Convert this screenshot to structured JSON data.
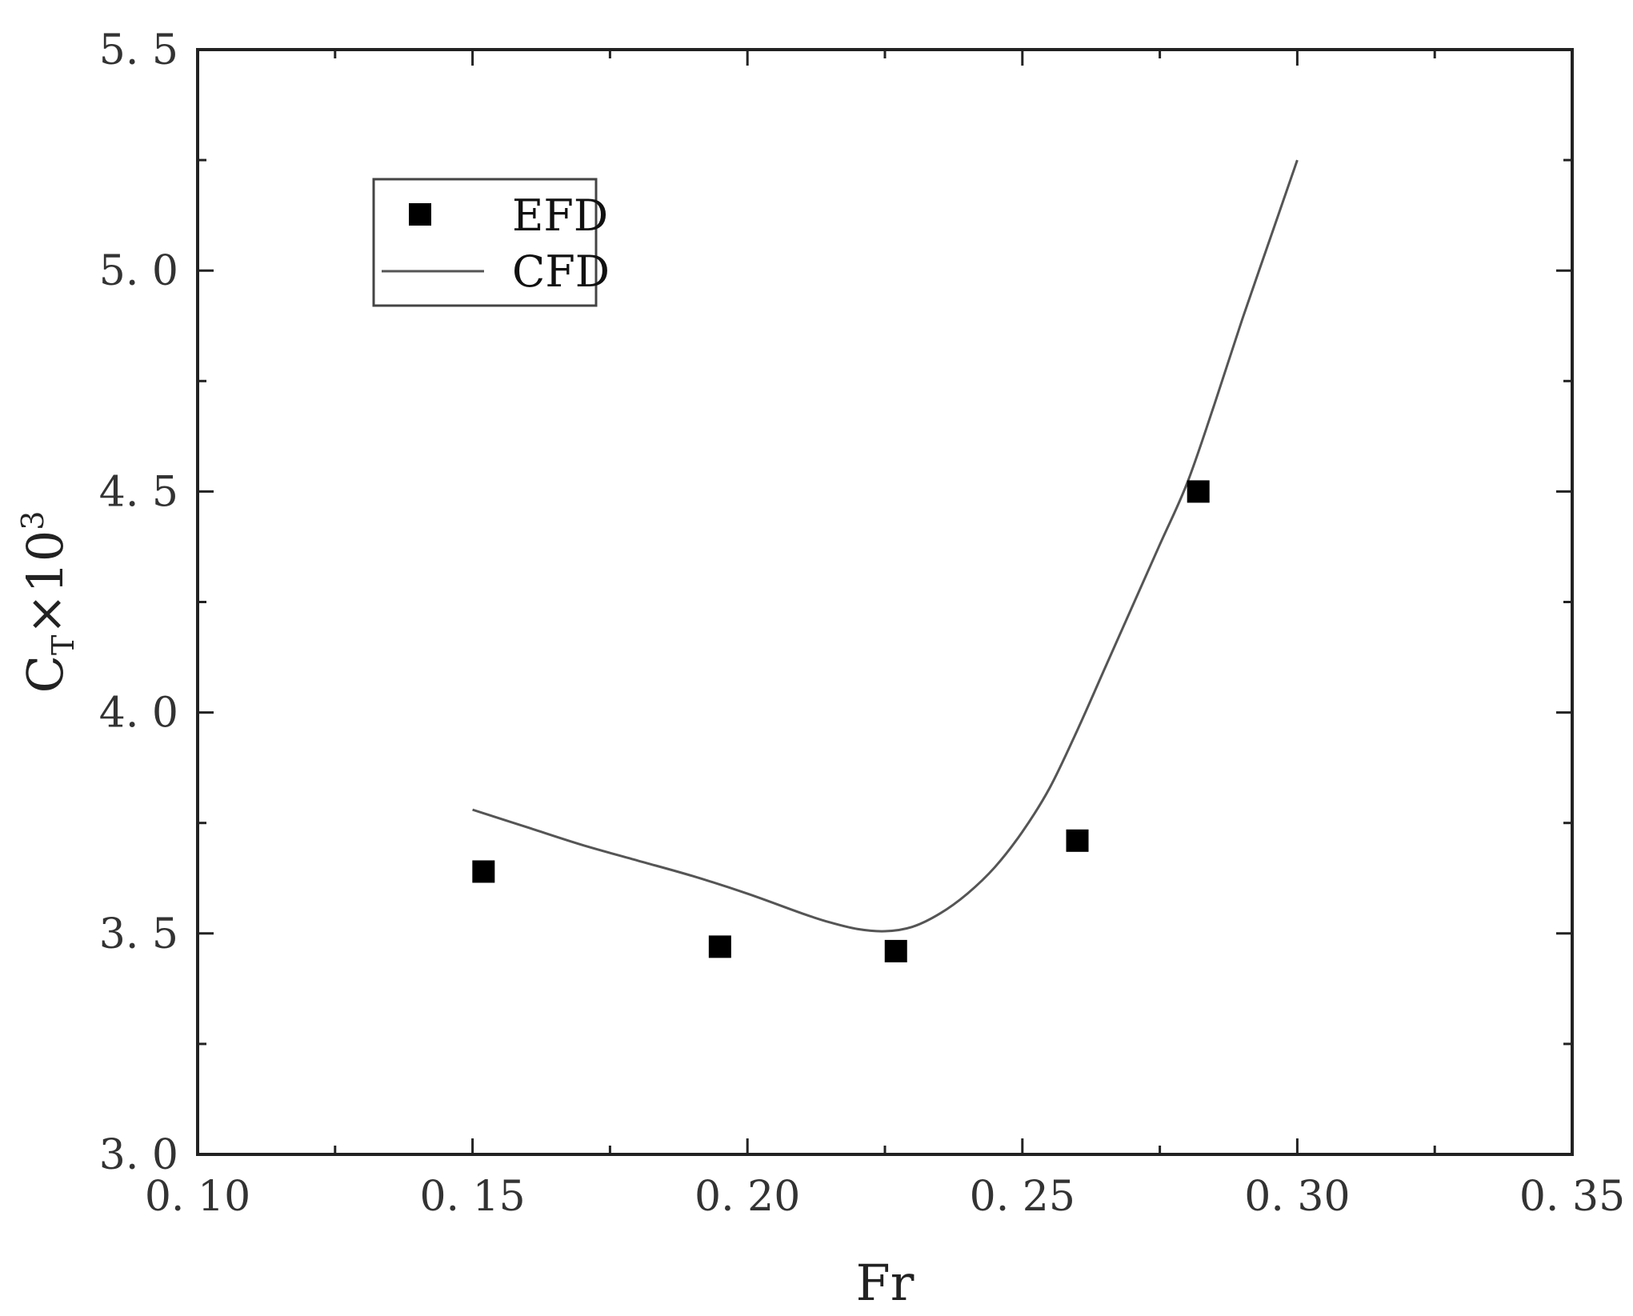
{
  "chart_data": {
    "type": "scatter",
    "xlabel": "Fr",
    "ylabel": {
      "base": "C",
      "subscript": "T",
      "times": "×",
      "power_base": "10",
      "superscript": "3"
    },
    "xlim": [
      0.1,
      0.35
    ],
    "ylim": [
      3.0,
      5.5
    ],
    "x_ticks": [
      0.1,
      0.15,
      0.2,
      0.25,
      0.3,
      0.35
    ],
    "x_tick_labels": [
      "0. 10",
      "0. 15",
      "0. 20",
      "0. 25",
      "0. 30",
      "0. 35"
    ],
    "y_ticks": [
      3.0,
      3.5,
      4.0,
      4.5,
      5.0,
      5.5
    ],
    "y_tick_labels": [
      "3. 0",
      "3. 5",
      "4. 0",
      "4. 5",
      "5. 0",
      "5. 5"
    ],
    "x_minor_ticks": [
      0.125,
      0.175,
      0.225,
      0.275,
      0.325
    ],
    "y_minor_ticks": [
      3.25,
      3.75,
      4.25,
      4.75,
      5.25
    ],
    "grid": false,
    "legend_position": "upper-left",
    "series": [
      {
        "name": "EFD",
        "kind": "scatter",
        "marker": "square",
        "color": "#000000",
        "x": [
          0.152,
          0.195,
          0.227,
          0.26,
          0.282
        ],
        "y": [
          3.64,
          3.47,
          3.46,
          3.71,
          4.5
        ]
      },
      {
        "name": "CFD",
        "kind": "line",
        "color": "#555555",
        "x": [
          0.15,
          0.16,
          0.17,
          0.18,
          0.19,
          0.2,
          0.21,
          0.215,
          0.22,
          0.225,
          0.23,
          0.235,
          0.24,
          0.245,
          0.25,
          0.255,
          0.26,
          0.265,
          0.27,
          0.275,
          0.28,
          0.285,
          0.29,
          0.295,
          0.3
        ],
        "y": [
          3.78,
          3.74,
          3.7,
          3.665,
          3.63,
          3.59,
          3.545,
          3.525,
          3.51,
          3.505,
          3.515,
          3.545,
          3.59,
          3.65,
          3.73,
          3.83,
          3.96,
          4.1,
          4.24,
          4.38,
          4.52,
          4.7,
          4.89,
          5.07,
          5.25
        ]
      }
    ]
  }
}
